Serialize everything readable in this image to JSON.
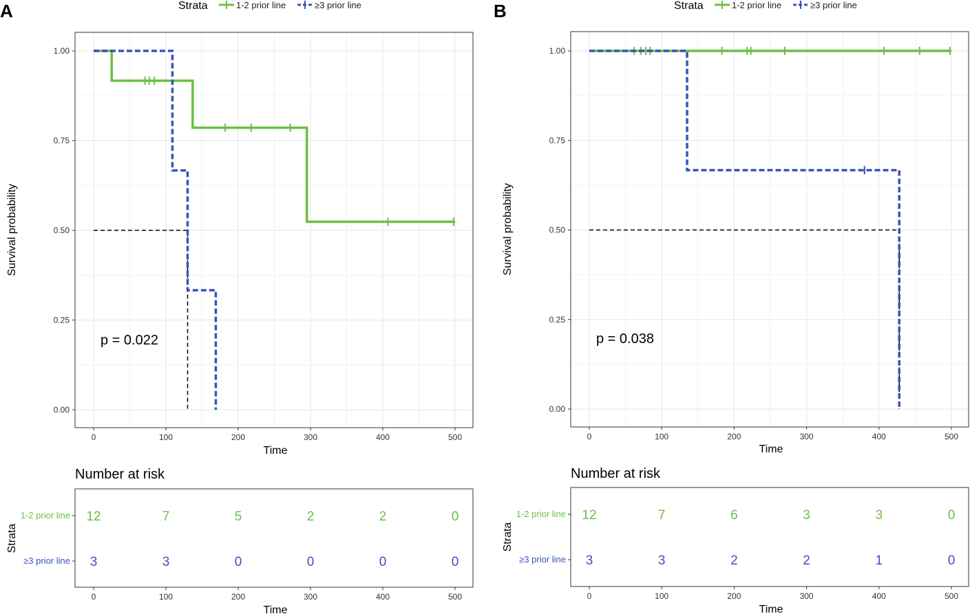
{
  "chart_data": [
    {
      "panel_label": "A",
      "type": "line",
      "subtype": "kaplan-meier",
      "title": "",
      "legend": {
        "title": "Strata",
        "position": "top",
        "entries": [
          {
            "name": "1-2 prior line",
            "color": "#6abf45",
            "dash": "solid"
          },
          {
            "name": "≥3 prior line",
            "color": "#3953b8",
            "dash": "dashed"
          }
        ]
      },
      "xlabel": "Time",
      "ylabel": "Survival probability",
      "xlim": [
        0,
        500
      ],
      "ylim": [
        0,
        1
      ],
      "xticks": [
        "0",
        "100",
        "200",
        "300",
        "400",
        "500"
      ],
      "yticks": [
        "0.00",
        "0.25",
        "0.50",
        "0.75",
        "1.00"
      ],
      "grid": true,
      "annotation": "p = 0.022",
      "series": [
        {
          "name": "1-2 prior line",
          "color": "#6abf45",
          "dash": "solid",
          "steps": [
            [
              0,
              1.0
            ],
            [
              25,
              0.917
            ],
            [
              137,
              0.786
            ],
            [
              295,
              0.524
            ],
            [
              500,
              0.524
            ]
          ],
          "censors": [
            [
              71,
              0.917
            ],
            [
              77,
              0.917
            ],
            [
              84,
              0.917
            ],
            [
              182,
              0.786
            ],
            [
              218,
              0.786
            ],
            [
              272,
              0.786
            ],
            [
              407,
              0.524
            ],
            [
              498,
              0.524
            ]
          ]
        },
        {
          "name": "≥3 prior line",
          "color": "#3953b8",
          "dash": "dashed",
          "steps": [
            [
              0,
              1.0
            ],
            [
              109,
              0.667
            ],
            [
              130,
              0.333
            ],
            [
              169,
              0.0
            ],
            [
              169,
              0.0
            ]
          ],
          "censors": []
        }
      ],
      "median_line": {
        "y": 0.5,
        "x": 130
      },
      "risk_table": {
        "title": "Number at risk",
        "ylabel": "Strata",
        "xlabel": "Time",
        "times": [
          0,
          100,
          200,
          300,
          400,
          500
        ],
        "rows": [
          {
            "label": "1-2 prior line",
            "color": "#6abf45",
            "values": [
              "12",
              "7",
              "5",
              "2",
              "2",
              "0"
            ]
          },
          {
            "label": "≥3 prior line",
            "color": "#3953b8",
            "values": [
              "3",
              "3",
              "0",
              "0",
              "0",
              "0"
            ]
          }
        ]
      }
    },
    {
      "panel_label": "B",
      "type": "line",
      "subtype": "kaplan-meier",
      "title": "",
      "legend": {
        "title": "Strata",
        "position": "top",
        "entries": [
          {
            "name": "1-2 prior line",
            "color": "#6abf45",
            "dash": "solid"
          },
          {
            "name": "≥3 prior line",
            "color": "#3953b8",
            "dash": "dashed"
          }
        ]
      },
      "xlabel": "Time",
      "ylabel": "Survival probability",
      "xlim": [
        0,
        500
      ],
      "ylim": [
        0,
        1
      ],
      "xticks": [
        "0",
        "100",
        "200",
        "300",
        "400",
        "500"
      ],
      "yticks": [
        "0.00",
        "0.25",
        "0.50",
        "0.75",
        "1.00"
      ],
      "grid": true,
      "annotation": "p = 0.038",
      "series": [
        {
          "name": "1-2 prior line",
          "color": "#6abf45",
          "dash": "solid",
          "steps": [
            [
              0,
              1.0
            ],
            [
              500,
              1.0
            ]
          ],
          "censors": [
            [
              62,
              1.0
            ],
            [
              71,
              1.0
            ],
            [
              78,
              1.0
            ],
            [
              84,
              1.0
            ],
            [
              183,
              1.0
            ],
            [
              218,
              1.0
            ],
            [
              223,
              1.0
            ],
            [
              270,
              1.0
            ],
            [
              407,
              1.0
            ],
            [
              456,
              1.0
            ],
            [
              498,
              1.0
            ]
          ]
        },
        {
          "name": "≥3 prior line",
          "color": "#3953b8",
          "dash": "dashed",
          "steps": [
            [
              0,
              1.0
            ],
            [
              135,
              0.667
            ],
            [
              428,
              0.0
            ],
            [
              428,
              0.0
            ]
          ],
          "censors": [
            [
              380,
              0.667
            ]
          ]
        }
      ],
      "median_line": {
        "y": 0.5,
        "x": 428
      },
      "risk_table": {
        "title": "Number at risk",
        "ylabel": "Strata",
        "xlabel": "Time",
        "times": [
          0,
          100,
          200,
          300,
          400,
          500
        ],
        "rows": [
          {
            "label": "1-2 prior line",
            "color": "#6abf45",
            "values": [
              "12",
              "7",
              "6",
              "3",
              "3",
              "0"
            ]
          },
          {
            "label": "≥3 prior line",
            "color": "#3953b8",
            "values": [
              "3",
              "3",
              "2",
              "2",
              "1",
              "0"
            ]
          }
        ]
      }
    }
  ]
}
